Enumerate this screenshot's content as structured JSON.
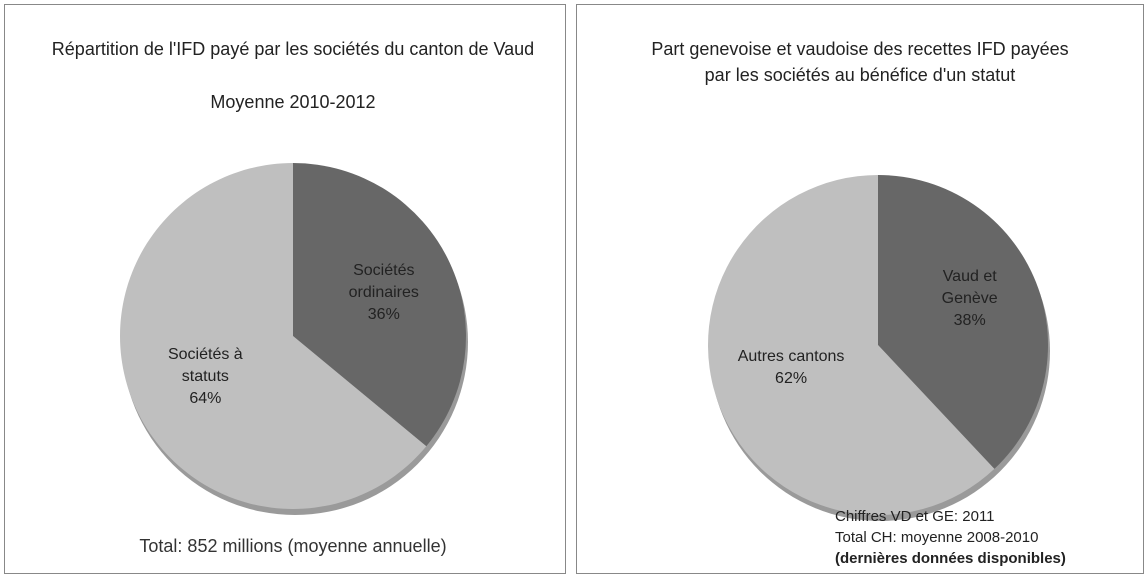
{
  "chart_data": [
    {
      "type": "pie",
      "title": "Répartition de l'IFD payé par les sociétés du canton de Vaud",
      "subtitle": "Moyenne 2010-2012",
      "categories": [
        "Sociétés ordinaires",
        "Sociétés à statuts"
      ],
      "values": [
        36,
        64
      ],
      "value_labels": [
        "36%",
        "64%"
      ],
      "colors": [
        "#676767",
        "#bfbfbf"
      ],
      "annotations": [
        "Total: 852 millions (moyenne annuelle)"
      ]
    },
    {
      "type": "pie",
      "title": "Part genevoise et vaudoise des recettes IFD payées par les sociétés au bénéfice d'un statut",
      "categories": [
        "Vaud et Genève",
        "Autres cantons"
      ],
      "values": [
        38,
        62
      ],
      "value_labels": [
        "38%",
        "62%"
      ],
      "colors": [
        "#676767",
        "#bfbfbf"
      ],
      "annotations": [
        "Chiffres VD et GE: 2011",
        "Total CH: moyenne 2008-2010",
        "(dernières données disponibles)"
      ]
    }
  ]
}
